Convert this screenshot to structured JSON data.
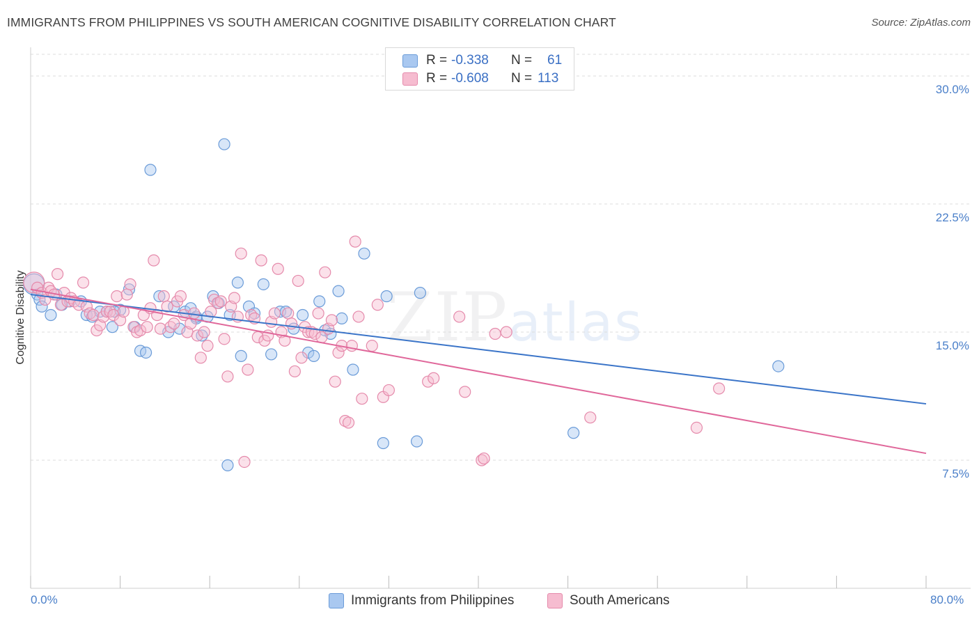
{
  "chart_data": {
    "type": "scatter",
    "title": "IMMIGRANTS FROM PHILIPPINES VS SOUTH AMERICAN COGNITIVE DISABILITY CORRELATION CHART",
    "source": "Source: ZipAtlas.com",
    "xlabel": "",
    "ylabel": "Cognitive Disability",
    "xlim": [
      0,
      80
    ],
    "ylim": [
      0,
      32
    ],
    "x_tick_labels": [
      "0.0%",
      "80.0%"
    ],
    "y_ticks": [
      {
        "value": 7.5,
        "label": "7.5%"
      },
      {
        "value": 15,
        "label": "15.0%"
      },
      {
        "value": 22.5,
        "label": "22.5%"
      },
      {
        "value": 30,
        "label": "30.0%"
      }
    ],
    "grid": true,
    "legend_position": "bottom-center",
    "stats": [
      {
        "r_label": "R =",
        "r": "-0.338",
        "n_label": "N =",
        "n": "61"
      },
      {
        "r_label": "R =",
        "r": "-0.608",
        "n_label": "N =",
        "n": "113"
      }
    ],
    "series": [
      {
        "name": "Immigrants from Philippines",
        "color": "#a9c8f0",
        "stroke": "#6a9bd8",
        "trend_color": "#3a74c8",
        "trend": [
          [
            0,
            17.2
          ],
          [
            80,
            10.8
          ]
        ],
        "points": [
          [
            0.3,
            17.8
          ],
          [
            0.6,
            17.2
          ],
          [
            0.8,
            16.9
          ],
          [
            1.0,
            16.5
          ],
          [
            1.8,
            16.0
          ],
          [
            2.3,
            17.2
          ],
          [
            2.8,
            16.6
          ],
          [
            3.5,
            16.8
          ],
          [
            4.5,
            16.8
          ],
          [
            5.0,
            16.0
          ],
          [
            5.5,
            15.9
          ],
          [
            6.2,
            16.2
          ],
          [
            6.8,
            16.2
          ],
          [
            7.3,
            15.3
          ],
          [
            8.0,
            16.3
          ],
          [
            8.8,
            17.5
          ],
          [
            9.3,
            15.3
          ],
          [
            9.8,
            13.9
          ],
          [
            10.3,
            13.8
          ],
          [
            10.7,
            24.5
          ],
          [
            11.5,
            17.1
          ],
          [
            12.3,
            15.0
          ],
          [
            12.8,
            16.5
          ],
          [
            13.3,
            15.2
          ],
          [
            13.8,
            16.2
          ],
          [
            14.3,
            16.4
          ],
          [
            14.8,
            15.8
          ],
          [
            15.3,
            14.8
          ],
          [
            15.8,
            15.9
          ],
          [
            16.3,
            17.1
          ],
          [
            16.8,
            16.7
          ],
          [
            17.3,
            26.0
          ],
          [
            17.6,
            7.2
          ],
          [
            17.8,
            16.0
          ],
          [
            18.5,
            17.9
          ],
          [
            18.8,
            13.6
          ],
          [
            19.5,
            16.5
          ],
          [
            20.0,
            16.1
          ],
          [
            20.8,
            17.8
          ],
          [
            21.5,
            13.7
          ],
          [
            22.3,
            16.2
          ],
          [
            22.8,
            16.2
          ],
          [
            23.5,
            15.2
          ],
          [
            24.3,
            16.0
          ],
          [
            24.8,
            13.8
          ],
          [
            25.3,
            13.6
          ],
          [
            25.8,
            16.8
          ],
          [
            26.3,
            15.1
          ],
          [
            26.8,
            14.9
          ],
          [
            27.5,
            17.4
          ],
          [
            27.8,
            15.8
          ],
          [
            28.8,
            12.8
          ],
          [
            29.8,
            19.6
          ],
          [
            31.5,
            8.5
          ],
          [
            31.8,
            17.1
          ],
          [
            34.5,
            8.6
          ],
          [
            34.8,
            17.3
          ],
          [
            48.5,
            9.1
          ],
          [
            66.8,
            13.0
          ],
          [
            14.8,
            15.9
          ],
          [
            7.5,
            16.2
          ]
        ]
      },
      {
        "name": "South Americans",
        "color": "#f6bcd0",
        "stroke": "#e58aab",
        "trend_color": "#e0679a",
        "trend": [
          [
            0,
            17.5
          ],
          [
            80,
            7.9
          ]
        ],
        "points": [
          [
            0.3,
            17.9
          ],
          [
            0.6,
            17.6
          ],
          [
            1.0,
            17.3
          ],
          [
            1.3,
            16.9
          ],
          [
            1.6,
            17.6
          ],
          [
            1.8,
            17.4
          ],
          [
            2.1,
            17.2
          ],
          [
            2.4,
            18.4
          ],
          [
            2.7,
            16.6
          ],
          [
            3.0,
            17.3
          ],
          [
            3.3,
            16.8
          ],
          [
            3.6,
            17.0
          ],
          [
            3.9,
            16.8
          ],
          [
            4.3,
            16.6
          ],
          [
            4.7,
            17.9
          ],
          [
            5.0,
            16.5
          ],
          [
            5.3,
            16.1
          ],
          [
            5.6,
            16.0
          ],
          [
            5.9,
            15.1
          ],
          [
            6.2,
            15.4
          ],
          [
            6.5,
            15.9
          ],
          [
            6.8,
            16.2
          ],
          [
            7.1,
            16.2
          ],
          [
            7.4,
            16.0
          ],
          [
            7.7,
            17.1
          ],
          [
            8.0,
            15.7
          ],
          [
            8.3,
            16.2
          ],
          [
            8.6,
            17.2
          ],
          [
            8.9,
            17.8
          ],
          [
            9.2,
            15.3
          ],
          [
            9.5,
            15.0
          ],
          [
            9.8,
            15.1
          ],
          [
            10.1,
            16.0
          ],
          [
            10.4,
            15.3
          ],
          [
            10.7,
            16.4
          ],
          [
            11.0,
            19.2
          ],
          [
            11.3,
            16.0
          ],
          [
            11.6,
            15.2
          ],
          [
            11.9,
            17.1
          ],
          [
            12.2,
            16.5
          ],
          [
            12.5,
            15.3
          ],
          [
            12.8,
            15.5
          ],
          [
            13.1,
            16.8
          ],
          [
            13.4,
            17.1
          ],
          [
            13.7,
            16.0
          ],
          [
            14.0,
            15.0
          ],
          [
            14.3,
            15.5
          ],
          [
            14.6,
            16.1
          ],
          [
            14.9,
            14.8
          ],
          [
            15.2,
            13.5
          ],
          [
            15.5,
            15.0
          ],
          [
            15.8,
            14.2
          ],
          [
            16.1,
            16.2
          ],
          [
            16.4,
            16.9
          ],
          [
            16.7,
            16.7
          ],
          [
            17.0,
            16.8
          ],
          [
            17.3,
            14.6
          ],
          [
            17.6,
            12.4
          ],
          [
            17.9,
            16.5
          ],
          [
            18.2,
            17.0
          ],
          [
            18.5,
            15.9
          ],
          [
            18.8,
            19.6
          ],
          [
            19.1,
            7.4
          ],
          [
            19.4,
            12.8
          ],
          [
            19.7,
            16.0
          ],
          [
            20.0,
            15.8
          ],
          [
            20.3,
            14.7
          ],
          [
            20.6,
            19.2
          ],
          [
            20.9,
            14.5
          ],
          [
            21.2,
            14.8
          ],
          [
            21.5,
            15.6
          ],
          [
            21.8,
            16.1
          ],
          [
            22.1,
            18.7
          ],
          [
            22.4,
            15.0
          ],
          [
            22.7,
            14.5
          ],
          [
            23.0,
            16.1
          ],
          [
            23.3,
            15.5
          ],
          [
            23.6,
            12.7
          ],
          [
            23.9,
            18.0
          ],
          [
            24.2,
            13.5
          ],
          [
            24.5,
            15.3
          ],
          [
            24.8,
            15.0
          ],
          [
            25.1,
            15.0
          ],
          [
            25.4,
            14.9
          ],
          [
            25.7,
            16.1
          ],
          [
            26.0,
            14.7
          ],
          [
            26.3,
            18.5
          ],
          [
            26.6,
            15.2
          ],
          [
            26.9,
            15.7
          ],
          [
            27.2,
            12.1
          ],
          [
            27.5,
            13.8
          ],
          [
            27.8,
            14.2
          ],
          [
            28.1,
            9.8
          ],
          [
            28.4,
            9.7
          ],
          [
            28.7,
            14.2
          ],
          [
            29.0,
            20.3
          ],
          [
            29.3,
            15.9
          ],
          [
            29.6,
            11.1
          ],
          [
            30.5,
            14.2
          ],
          [
            31.0,
            16.6
          ],
          [
            31.5,
            11.2
          ],
          [
            32.0,
            11.6
          ],
          [
            35.5,
            12.1
          ],
          [
            36.0,
            12.3
          ],
          [
            38.3,
            15.9
          ],
          [
            38.8,
            11.5
          ],
          [
            40.3,
            7.5
          ],
          [
            40.5,
            7.6
          ],
          [
            41.5,
            14.9
          ],
          [
            42.5,
            15.0
          ],
          [
            50.0,
            10.0
          ],
          [
            59.5,
            9.4
          ],
          [
            61.5,
            11.7
          ]
        ]
      }
    ]
  }
}
